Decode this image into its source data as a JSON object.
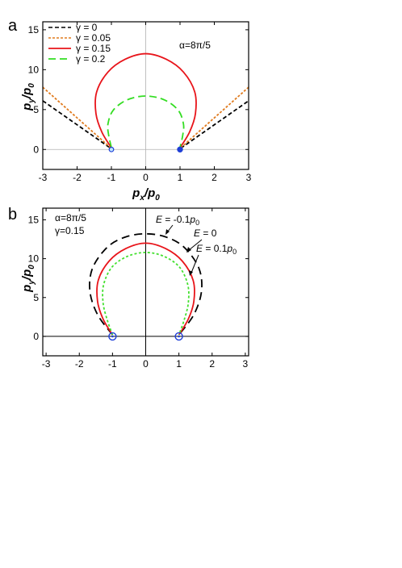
{
  "chart_data": [
    {
      "panel": "a",
      "type": "line",
      "xlabel": "p_x/p_0",
      "ylabel": "p_y/p_0",
      "xlim": [
        -3,
        3
      ],
      "ylim": [
        -2.5,
        16
      ],
      "xticks": [
        -3,
        -2,
        -1,
        0,
        1,
        2,
        3
      ],
      "yticks": [
        0,
        5,
        10,
        15
      ],
      "grid": false,
      "zero_lines": true,
      "legend_position": "top-left",
      "annotation": "α=8π/5",
      "series": [
        {
          "name": "γ = 0",
          "color": "#000000",
          "dash": "5,3",
          "segments": [
            {
              "x": [
                -3,
                -1.02
              ],
              "y": [
                6.1,
                0.15
              ]
            },
            {
              "x": [
                1.02,
                3
              ],
              "y": [
                0.15,
                6.1
              ]
            }
          ]
        },
        {
          "name": "γ = 0.05",
          "color": "#e07b1f",
          "dash": "3,2",
          "segments": [
            {
              "x": [
                -3,
                -1.02
              ],
              "y": [
                7.8,
                0.2
              ]
            },
            {
              "x": [
                1.02,
                3
              ],
              "y": [
                0.2,
                7.8
              ]
            }
          ]
        },
        {
          "name": "γ = 0.15",
          "color": "#e8141a",
          "dash": "",
          "curve": {
            "x": [
              -1,
              -1.28,
              -1.45,
              -1.43,
              -1.1,
              -0.6,
              0,
              0.6,
              1.1,
              1.43,
              1.45,
              1.28,
              1
            ],
            "y": [
              0.2,
              2.2,
              4.5,
              7.2,
              9.7,
              11.3,
              12,
              11.3,
              9.7,
              7.2,
              4.5,
              2.2,
              0.2
            ]
          }
        },
        {
          "name": "γ = 0.2",
          "color": "#33dd22",
          "dash": "9,5",
          "curve": {
            "x": [
              -1,
              -1.08,
              -1.1,
              -0.95,
              -0.55,
              0,
              0.55,
              0.95,
              1.1,
              1.08,
              1
            ],
            "y": [
              0.25,
              1.8,
              3.2,
              4.9,
              6.2,
              6.7,
              6.2,
              4.9,
              3.2,
              1.8,
              0.25
            ]
          }
        }
      ],
      "markers": [
        {
          "x": -1,
          "y": 0,
          "style": "open",
          "color": "#1f3fd6"
        },
        {
          "x": 1,
          "y": 0,
          "style": "filled",
          "color": "#1f3fd6"
        }
      ]
    },
    {
      "panel": "b",
      "type": "line",
      "xlabel": "",
      "ylabel": "p_y/p_0",
      "xlim": [
        -3.1,
        3.1
      ],
      "ylim": [
        -2.5,
        16.5
      ],
      "xticks": [
        -3,
        -2,
        -1,
        0,
        1,
        2,
        3
      ],
      "yticks": [
        0,
        5,
        10,
        15
      ],
      "grid": false,
      "zero_lines": true,
      "annotations": [
        "α=8π/5",
        "γ=0.15"
      ],
      "series": [
        {
          "name": "E = -0.1p_0",
          "color": "#000000",
          "dash": "10,6",
          "curve": {
            "x": [
              -1,
              -1.45,
              -1.68,
              -1.6,
              -1.15,
              -0.6,
              0,
              0.6,
              1.15,
              1.6,
              1.68,
              1.45,
              1
            ],
            "y": [
              0.2,
              2.8,
              5.8,
              8.8,
              11.5,
              12.8,
              13.2,
              12.8,
              11.5,
              8.8,
              5.8,
              2.8,
              0.2
            ]
          }
        },
        {
          "name": "E = 0",
          "color": "#e8141a",
          "dash": "",
          "curve": {
            "x": [
              -1,
              -1.28,
              -1.45,
              -1.43,
              -1.1,
              -0.6,
              0,
              0.6,
              1.1,
              1.43,
              1.45,
              1.28,
              1
            ],
            "y": [
              0.2,
              2.2,
              4.5,
              7.2,
              9.7,
              11.3,
              12,
              11.3,
              9.7,
              7.2,
              4.5,
              2.2,
              0.2
            ]
          }
        },
        {
          "name": "E = 0.1p_0",
          "color": "#44e030",
          "dash": "3,2.5",
          "curve": {
            "x": [
              -1,
              -1.15,
              -1.28,
              -1.27,
              -1.02,
              -0.55,
              0,
              0.55,
              1.02,
              1.27,
              1.28,
              1.15,
              1
            ],
            "y": [
              0.2,
              2.0,
              4.2,
              6.6,
              8.9,
              10.3,
              10.8,
              10.3,
              8.9,
              6.6,
              4.2,
              2.0,
              0.2
            ]
          }
        }
      ],
      "markers": [
        {
          "x": -1,
          "y": 0,
          "style": "ring",
          "color": "#1f3fd6"
        },
        {
          "x": 1,
          "y": 0,
          "style": "ring",
          "color": "#1f3fd6"
        }
      ]
    }
  ],
  "labels": {
    "panel_a": "a",
    "panel_b": "b",
    "p": "p",
    "sub_x": "x",
    "sub_y": "y",
    "sub_0": "0",
    "slash": "/",
    "e_label": "E",
    "e_minus_prefix": " = -0.1",
    "e_zero_suffix": " = 0",
    "e_plus_prefix": " = 0.1"
  }
}
